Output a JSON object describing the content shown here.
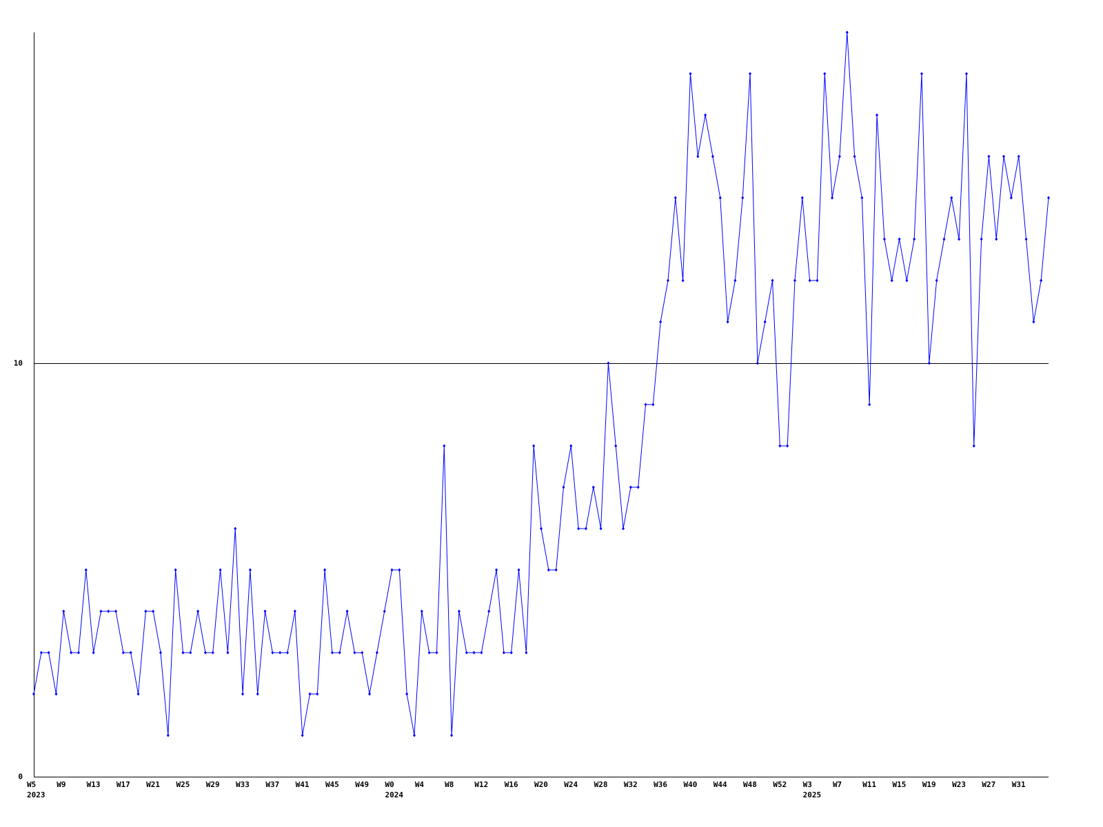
{
  "chart_data": {
    "type": "line",
    "categories": [
      "W5",
      null,
      null,
      null,
      "W9",
      null,
      null,
      null,
      "W13",
      null,
      null,
      null,
      "W17",
      null,
      null,
      null,
      "W21",
      null,
      null,
      null,
      "W25",
      null,
      null,
      null,
      "W29",
      null,
      null,
      null,
      "W33",
      null,
      null,
      null,
      "W37",
      null,
      null,
      null,
      "W41",
      null,
      null,
      null,
      "W45",
      null,
      null,
      null,
      "W49",
      null,
      null,
      null,
      "W0",
      null,
      null,
      null,
      "W4",
      null,
      null,
      null,
      "W8",
      null,
      null,
      null,
      "W12",
      null,
      null,
      null,
      "W16",
      null,
      null,
      null,
      "W20",
      null,
      null,
      null,
      "W24",
      null,
      null,
      null,
      "W28",
      null,
      null,
      null,
      "W32",
      null,
      null,
      null,
      "W36",
      null,
      null,
      null,
      "W40",
      null,
      null,
      null,
      "W44",
      null,
      null,
      null,
      "W48",
      null,
      null,
      null,
      "W52",
      null,
      null,
      null,
      "W3",
      null,
      null,
      null,
      "W7",
      null,
      null,
      null,
      "W11",
      null,
      null,
      null,
      "W15",
      null,
      null,
      null,
      "W19",
      null,
      null,
      null,
      "W23",
      null,
      null,
      null,
      "W27",
      null,
      null,
      null,
      "W31",
      null,
      null,
      null,
      null
    ],
    "category_years": [
      "2023",
      null,
      null,
      null,
      null,
      null,
      null,
      null,
      null,
      null,
      null,
      null,
      null,
      null,
      null,
      null,
      null,
      null,
      null,
      null,
      null,
      null,
      null,
      null,
      null,
      null,
      null,
      null,
      null,
      null,
      null,
      null,
      null,
      null,
      null,
      null,
      null,
      null,
      null,
      null,
      null,
      null,
      null,
      null,
      null,
      null,
      null,
      null,
      "2024",
      null,
      null,
      null,
      null,
      null,
      null,
      null,
      null,
      null,
      null,
      null,
      null,
      null,
      null,
      null,
      null,
      null,
      null,
      null,
      null,
      null,
      null,
      null,
      null,
      null,
      null,
      null,
      null,
      null,
      null,
      null,
      null,
      null,
      null,
      null,
      null,
      null,
      null,
      null,
      null,
      null,
      null,
      null,
      null,
      null,
      null,
      null,
      null,
      null,
      null,
      null,
      null,
      null,
      null,
      null,
      "2025",
      null,
      null,
      null,
      null,
      null,
      null,
      null,
      null,
      null,
      null,
      null,
      null,
      null,
      null,
      null,
      null,
      null,
      null,
      null,
      null,
      null,
      null,
      null,
      null,
      null,
      null,
      null,
      null,
      null,
      null,
      null
    ],
    "series": [
      {
        "color": "#0000ff",
        "values": [
          2,
          3,
          3,
          2,
          4,
          3,
          3,
          5,
          3,
          4,
          4,
          4,
          3,
          3,
          2,
          4,
          4,
          3,
          1,
          5,
          3,
          3,
          4,
          3,
          3,
          5,
          3,
          6,
          2,
          5,
          2,
          4,
          3,
          3,
          3,
          4,
          1,
          2,
          2,
          5,
          3,
          3,
          4,
          3,
          3,
          2,
          3,
          4,
          5,
          5,
          2,
          1,
          4,
          3,
          3,
          8,
          1,
          4,
          3,
          3,
          3,
          4,
          5,
          3,
          3,
          5,
          3,
          8,
          6,
          5,
          5,
          7,
          8,
          6,
          6,
          7,
          6,
          10,
          8,
          6,
          7,
          7,
          9,
          9,
          11,
          12,
          14,
          12,
          17,
          15,
          16,
          15,
          14,
          11,
          12,
          14,
          17,
          10,
          11,
          12,
          8,
          8,
          12,
          14,
          12,
          12,
          17,
          14,
          15,
          18,
          15,
          14,
          9,
          16,
          13,
          12,
          13,
          12,
          13,
          17,
          10,
          12,
          13,
          14,
          13,
          17,
          8,
          13,
          15,
          13,
          15,
          14,
          15,
          13,
          11,
          12,
          14
        ]
      }
    ],
    "ylim": [
      0,
      18
    ],
    "yticks": [
      0,
      10
    ],
    "grid": true
  }
}
